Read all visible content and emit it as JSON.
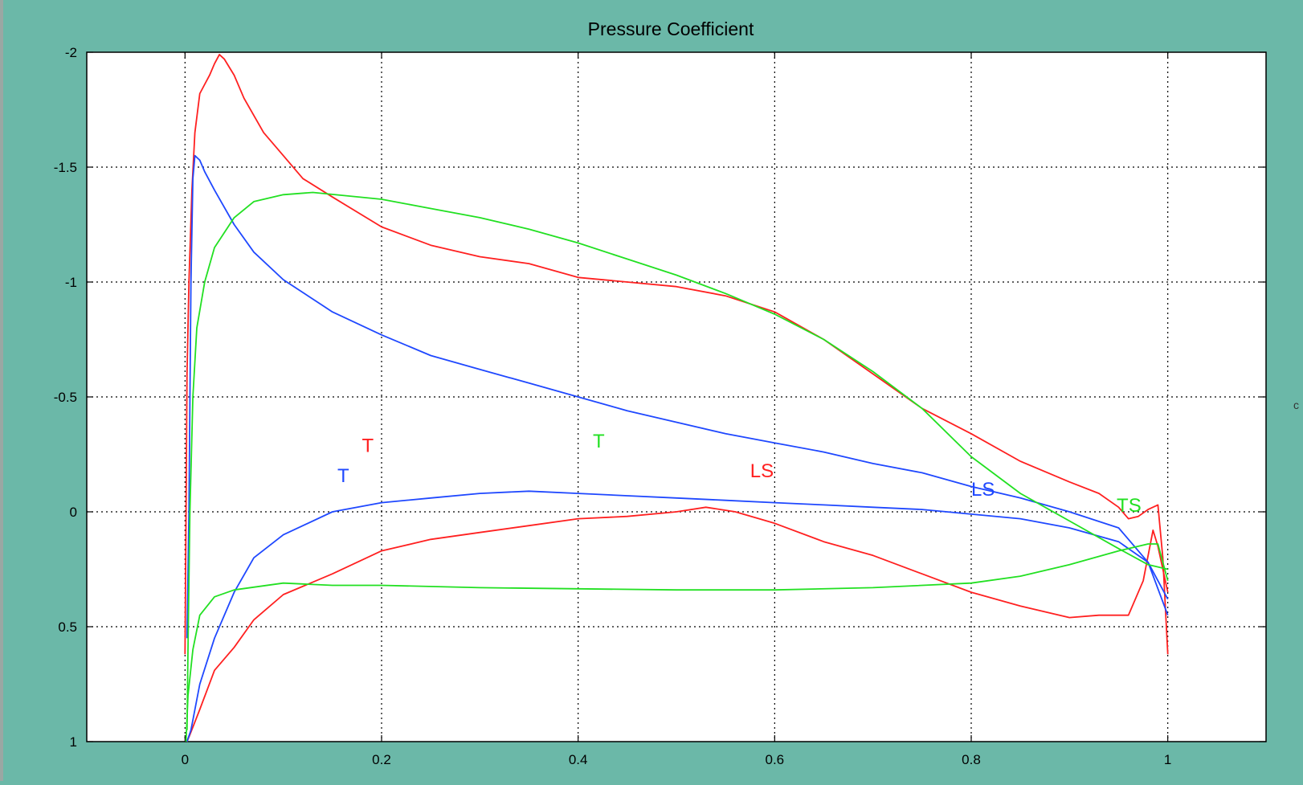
{
  "window": {
    "right_edge_glyph": "c"
  },
  "chart_data": {
    "type": "line",
    "title": "Pressure Coefficient",
    "xlabel": "",
    "ylabel": "",
    "xlim": [
      -0.1,
      1.1
    ],
    "ylim": [
      1,
      -2
    ],
    "y_reversed": true,
    "grid": true,
    "x_ticks": [
      0,
      0.2,
      0.4,
      0.6,
      0.8,
      1
    ],
    "x_tick_labels": [
      "0",
      "0.2",
      "0.4",
      "0.6",
      "0.8",
      "1"
    ],
    "y_ticks": [
      -2,
      -1.5,
      -1,
      -0.5,
      0,
      0.5,
      1
    ],
    "y_tick_labels": [
      "-2",
      "-1.5",
      "-1",
      "-0.5",
      "0",
      "0.5",
      "1"
    ],
    "colors": {
      "red": "#ff2020",
      "blue": "#1f48ff",
      "green": "#22e022",
      "background": "#6bb8a8"
    },
    "series": [
      {
        "color": "red",
        "points": [
          [
            0,
            0.62
          ],
          [
            0.001,
            0.0
          ],
          [
            0.002,
            -0.6
          ],
          [
            0.004,
            -1.0
          ],
          [
            0.007,
            -1.4
          ],
          [
            0.01,
            -1.65
          ],
          [
            0.015,
            -1.82
          ],
          [
            0.02,
            -1.86
          ],
          [
            0.025,
            -1.9
          ],
          [
            0.03,
            -1.95
          ],
          [
            0.035,
            -1.99
          ],
          [
            0.04,
            -1.97
          ],
          [
            0.05,
            -1.9
          ],
          [
            0.06,
            -1.8
          ],
          [
            0.08,
            -1.65
          ],
          [
            0.1,
            -1.55
          ],
          [
            0.12,
            -1.45
          ],
          [
            0.15,
            -1.37
          ],
          [
            0.2,
            -1.24
          ],
          [
            0.25,
            -1.16
          ],
          [
            0.3,
            -1.11
          ],
          [
            0.35,
            -1.08
          ],
          [
            0.4,
            -1.02
          ],
          [
            0.45,
            -1.0
          ],
          [
            0.5,
            -0.98
          ],
          [
            0.55,
            -0.94
          ],
          [
            0.6,
            -0.87
          ],
          [
            0.65,
            -0.75
          ],
          [
            0.7,
            -0.6
          ],
          [
            0.75,
            -0.45
          ],
          [
            0.8,
            -0.34
          ],
          [
            0.85,
            -0.22
          ],
          [
            0.9,
            -0.13
          ],
          [
            0.93,
            -0.08
          ],
          [
            0.95,
            -0.02
          ],
          [
            0.96,
            0.03
          ],
          [
            0.97,
            0.02
          ],
          [
            0.98,
            -0.01
          ],
          [
            0.99,
            -0.03
          ],
          [
            0.995,
            0.2
          ],
          [
            1.0,
            0.62
          ]
        ]
      },
      {
        "color": "red",
        "points": [
          [
            0.002,
            1.0
          ],
          [
            0.005,
            0.97
          ],
          [
            0.015,
            0.86
          ],
          [
            0.03,
            0.69
          ],
          [
            0.05,
            0.59
          ],
          [
            0.07,
            0.47
          ],
          [
            0.1,
            0.36
          ],
          [
            0.15,
            0.27
          ],
          [
            0.2,
            0.17
          ],
          [
            0.25,
            0.12
          ],
          [
            0.3,
            0.09
          ],
          [
            0.35,
            0.06
          ],
          [
            0.4,
            0.03
          ],
          [
            0.45,
            0.02
          ],
          [
            0.5,
            0.0
          ],
          [
            0.53,
            -0.02
          ],
          [
            0.56,
            0.0
          ],
          [
            0.6,
            0.05
          ],
          [
            0.65,
            0.13
          ],
          [
            0.7,
            0.19
          ],
          [
            0.75,
            0.27
          ],
          [
            0.8,
            0.35
          ],
          [
            0.85,
            0.41
          ],
          [
            0.9,
            0.46
          ],
          [
            0.93,
            0.45
          ],
          [
            0.96,
            0.45
          ],
          [
            0.975,
            0.3
          ],
          [
            0.985,
            0.08
          ],
          [
            0.99,
            0.15
          ],
          [
            1.0,
            0.35
          ]
        ]
      },
      {
        "color": "blue",
        "points": [
          [
            0.002,
            0.55
          ],
          [
            0.004,
            0.0
          ],
          [
            0.006,
            -1.0
          ],
          [
            0.008,
            -1.45
          ],
          [
            0.01,
            -1.55
          ],
          [
            0.015,
            -1.53
          ],
          [
            0.02,
            -1.48
          ],
          [
            0.03,
            -1.4
          ],
          [
            0.05,
            -1.25
          ],
          [
            0.07,
            -1.13
          ],
          [
            0.1,
            -1.01
          ],
          [
            0.15,
            -0.87
          ],
          [
            0.2,
            -0.77
          ],
          [
            0.25,
            -0.68
          ],
          [
            0.3,
            -0.62
          ],
          [
            0.35,
            -0.56
          ],
          [
            0.4,
            -0.5
          ],
          [
            0.45,
            -0.44
          ],
          [
            0.5,
            -0.39
          ],
          [
            0.55,
            -0.34
          ],
          [
            0.6,
            -0.3
          ],
          [
            0.65,
            -0.26
          ],
          [
            0.7,
            -0.21
          ],
          [
            0.75,
            -0.17
          ],
          [
            0.8,
            -0.11
          ],
          [
            0.85,
            -0.06
          ],
          [
            0.9,
            0.0
          ],
          [
            0.95,
            0.07
          ],
          [
            0.98,
            0.22
          ],
          [
            1.0,
            0.45
          ]
        ]
      },
      {
        "color": "blue",
        "points": [
          [
            0.002,
            1.0
          ],
          [
            0.006,
            0.95
          ],
          [
            0.015,
            0.75
          ],
          [
            0.03,
            0.55
          ],
          [
            0.05,
            0.35
          ],
          [
            0.07,
            0.2
          ],
          [
            0.1,
            0.1
          ],
          [
            0.15,
            0.0
          ],
          [
            0.2,
            -0.04
          ],
          [
            0.25,
            -0.06
          ],
          [
            0.3,
            -0.08
          ],
          [
            0.35,
            -0.09
          ],
          [
            0.4,
            -0.08
          ],
          [
            0.45,
            -0.07
          ],
          [
            0.5,
            -0.06
          ],
          [
            0.55,
            -0.05
          ],
          [
            0.6,
            -0.04
          ],
          [
            0.65,
            -0.03
          ],
          [
            0.7,
            -0.02
          ],
          [
            0.75,
            -0.01
          ],
          [
            0.8,
            0.01
          ],
          [
            0.85,
            0.03
          ],
          [
            0.9,
            0.07
          ],
          [
            0.95,
            0.13
          ],
          [
            0.98,
            0.22
          ],
          [
            1.0,
            0.38
          ]
        ]
      },
      {
        "color": "green",
        "points": [
          [
            0.002,
            0.95
          ],
          [
            0.003,
            0.6
          ],
          [
            0.005,
            0.0
          ],
          [
            0.008,
            -0.5
          ],
          [
            0.012,
            -0.8
          ],
          [
            0.02,
            -1.0
          ],
          [
            0.03,
            -1.15
          ],
          [
            0.05,
            -1.28
          ],
          [
            0.07,
            -1.35
          ],
          [
            0.1,
            -1.38
          ],
          [
            0.13,
            -1.39
          ],
          [
            0.2,
            -1.36
          ],
          [
            0.25,
            -1.32
          ],
          [
            0.3,
            -1.28
          ],
          [
            0.35,
            -1.23
          ],
          [
            0.4,
            -1.17
          ],
          [
            0.45,
            -1.1
          ],
          [
            0.5,
            -1.03
          ],
          [
            0.55,
            -0.95
          ],
          [
            0.6,
            -0.86
          ],
          [
            0.65,
            -0.75
          ],
          [
            0.7,
            -0.61
          ],
          [
            0.75,
            -0.45
          ],
          [
            0.8,
            -0.24
          ],
          [
            0.85,
            -0.08
          ],
          [
            0.9,
            0.04
          ],
          [
            0.95,
            0.16
          ],
          [
            0.98,
            0.23
          ],
          [
            1.0,
            0.25
          ]
        ]
      },
      {
        "color": "green",
        "points": [
          [
            0.001,
            1.0
          ],
          [
            0.003,
            0.8
          ],
          [
            0.008,
            0.6
          ],
          [
            0.015,
            0.45
          ],
          [
            0.03,
            0.37
          ],
          [
            0.05,
            0.34
          ],
          [
            0.1,
            0.31
          ],
          [
            0.15,
            0.32
          ],
          [
            0.2,
            0.32
          ],
          [
            0.3,
            0.33
          ],
          [
            0.4,
            0.335
          ],
          [
            0.5,
            0.34
          ],
          [
            0.6,
            0.34
          ],
          [
            0.7,
            0.33
          ],
          [
            0.8,
            0.31
          ],
          [
            0.85,
            0.28
          ],
          [
            0.9,
            0.23
          ],
          [
            0.95,
            0.17
          ],
          [
            0.98,
            0.14
          ],
          [
            0.99,
            0.14
          ],
          [
            1.0,
            0.3
          ]
        ]
      }
    ],
    "annotations": [
      {
        "text": "T",
        "x": 0.18,
        "y": -0.26,
        "color": "red"
      },
      {
        "text": "T",
        "x": 0.155,
        "y": -0.13,
        "color": "blue"
      },
      {
        "text": "T",
        "x": 0.415,
        "y": -0.28,
        "color": "green"
      },
      {
        "text": "TS",
        "x": 0.948,
        "y": 0.0,
        "color": "green"
      },
      {
        "text": "LS",
        "x": 0.8,
        "y": -0.07,
        "color": "blue"
      },
      {
        "text": "LS",
        "x": 0.575,
        "y": -0.15,
        "color": "red"
      }
    ]
  }
}
